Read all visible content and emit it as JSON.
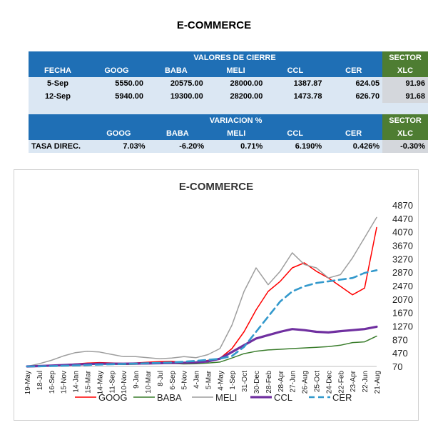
{
  "page_title": "E-COMMERCE",
  "table1": {
    "group_header": "VALORES DE CIERRE",
    "sector_label": "SECTOR",
    "sector_sub": "XLC",
    "columns": [
      "FECHA",
      "GOOG",
      "BABA",
      "MELI",
      "CCL",
      "CER"
    ],
    "rows": [
      {
        "date": "5-Sep",
        "values": [
          "5550.00",
          "20575.00",
          "28000.00",
          "1387.87",
          "624.05"
        ],
        "xlc": "91.96"
      },
      {
        "date": "12-Sep",
        "values": [
          "5940.00",
          "19300.00",
          "28200.00",
          "1473.78",
          "626.70"
        ],
        "xlc": "91.68"
      }
    ]
  },
  "table2": {
    "group_header": "VARIACION %",
    "sector_label": "SECTOR",
    "sector_sub": "XLC",
    "columns": [
      "GOOG",
      "BABA",
      "MELI",
      "CCL",
      "CER"
    ],
    "row_label": "TASA DIREC.",
    "values": [
      "7.03%",
      "-6.20%",
      "0.71%",
      "6.190%",
      "0.426%"
    ],
    "xlc": "-0.30%"
  },
  "chart_data": {
    "type": "line",
    "title": "E-COMMERCE",
    "x_tick_labels": [
      "19-May",
      "18-Jul",
      "16-Sep",
      "15-Nov",
      "14-Jan",
      "15-Mar",
      "14-May",
      "11-Sep",
      "10-Nov",
      "9-Jan",
      "10-Mar",
      "8-Jul",
      "6-Sep",
      "5-Nov",
      "4-Jan",
      "5-Mar",
      "4-May",
      "1-Sep",
      "31-Oct",
      "30-Dec",
      "28-Feb",
      "28-Apr",
      "27-Jun",
      "26-Aug",
      "25-Oct",
      "24-Dec",
      "22-Feb",
      "23-Apr",
      "22-Jun",
      "21-Aug"
    ],
    "y_ticks": [
      70,
      470,
      870,
      1270,
      1670,
      2070,
      2470,
      2870,
      3270,
      3670,
      4070,
      4470,
      4870
    ],
    "ylim": [
      70,
      4870
    ],
    "y_axis_side": "right",
    "legend_position": "bottom",
    "series": [
      {
        "name": "GOOG",
        "color": "#ff0000",
        "style": "solid",
        "width": 1.5,
        "values": [
          70,
          85,
          100,
          120,
          145,
          170,
          185,
          175,
          160,
          175,
          195,
          215,
          220,
          190,
          185,
          250,
          310,
          600,
          1100,
          1750,
          2300,
          2600,
          3000,
          3150,
          2900,
          2700,
          2450,
          2200,
          2400,
          4200
        ]
      },
      {
        "name": "BABA",
        "color": "#3a7d2c",
        "style": "solid",
        "width": 1.5,
        "values": [
          70,
          80,
          95,
          110,
          120,
          135,
          140,
          135,
          128,
          135,
          145,
          155,
          158,
          145,
          150,
          170,
          200,
          320,
          450,
          520,
          560,
          580,
          600,
          620,
          640,
          660,
          700,
          780,
          800,
          970
        ]
      },
      {
        "name": "MELI",
        "color": "#9e9e9e",
        "style": "solid",
        "width": 1.5,
        "values": [
          70,
          150,
          250,
          380,
          480,
          520,
          500,
          430,
          360,
          360,
          330,
          300,
          320,
          360,
          330,
          420,
          600,
          1300,
          2300,
          3000,
          2500,
          2900,
          3450,
          3100,
          3000,
          2700,
          2800,
          3300,
          3900,
          4500
        ]
      },
      {
        "name": "CCL",
        "color": "#7030a0",
        "style": "solid",
        "width": 3.2,
        "values": [
          70,
          80,
          95,
          110,
          125,
          140,
          150,
          150,
          150,
          155,
          160,
          165,
          175,
          180,
          190,
          220,
          300,
          500,
          700,
          900,
          1000,
          1100,
          1180,
          1150,
          1100,
          1080,
          1120,
          1150,
          1180,
          1250
        ]
      },
      {
        "name": "CER",
        "color": "#3399cc",
        "style": "dashed",
        "width": 2.6,
        "values": [
          70,
          75,
          80,
          90,
          100,
          110,
          125,
          135,
          145,
          155,
          165,
          175,
          190,
          210,
          235,
          265,
          300,
          380,
          650,
          1100,
          1550,
          2000,
          2300,
          2450,
          2550,
          2600,
          2650,
          2700,
          2850,
          2930
        ]
      }
    ]
  }
}
